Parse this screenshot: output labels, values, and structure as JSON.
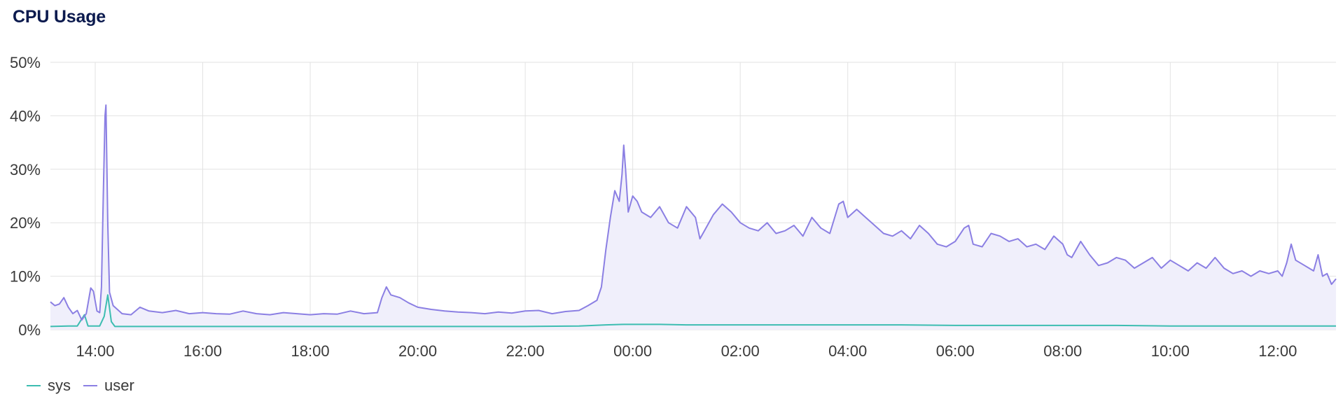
{
  "title": "CPU Usage",
  "colors": {
    "sys": "#3dbdb1",
    "user": "#8b7fe3",
    "user_fill": "#f0effb",
    "grid": "#e2e2e2"
  },
  "chart_data": {
    "type": "area",
    "title": "CPU Usage",
    "xlabel": "",
    "ylabel": "",
    "x_unit": "hours (time of day, wrapping past midnight)",
    "xlim": [
      "13:10",
      "13:05"
    ],
    "ylim": [
      0,
      50
    ],
    "y_ticks": [
      "0%",
      "10%",
      "20%",
      "30%",
      "40%",
      "50%"
    ],
    "x_ticks": [
      "14:00",
      "16:00",
      "18:00",
      "20:00",
      "22:00",
      "00:00",
      "02:00",
      "04:00",
      "06:00",
      "08:00",
      "10:00",
      "12:00"
    ],
    "grid": true,
    "legend": "bottom-left",
    "series": [
      {
        "name": "sys",
        "points": [
          [
            "13:10",
            0.6
          ],
          [
            "13:30",
            0.7
          ],
          [
            "13:40",
            0.7
          ],
          [
            "13:48",
            2.8
          ],
          [
            "13:52",
            0.7
          ],
          [
            "14:00",
            0.7
          ],
          [
            "14:05",
            0.7
          ],
          [
            "14:10",
            2.5
          ],
          [
            "14:14",
            6.5
          ],
          [
            "14:18",
            1.5
          ],
          [
            "14:22",
            0.6
          ],
          [
            "15:00",
            0.6
          ],
          [
            "16:00",
            0.6
          ],
          [
            "17:00",
            0.6
          ],
          [
            "18:00",
            0.6
          ],
          [
            "19:00",
            0.6
          ],
          [
            "20:00",
            0.6
          ],
          [
            "21:00",
            0.6
          ],
          [
            "22:00",
            0.6
          ],
          [
            "23:00",
            0.7
          ],
          [
            "23:30",
            0.9
          ],
          [
            "23:50",
            1.0
          ],
          [
            "00:00",
            1.0
          ],
          [
            "00:30",
            1.0
          ],
          [
            "01:00",
            0.9
          ],
          [
            "02:00",
            0.9
          ],
          [
            "03:00",
            0.9
          ],
          [
            "04:00",
            0.9
          ],
          [
            "05:00",
            0.9
          ],
          [
            "06:00",
            0.8
          ],
          [
            "07:00",
            0.8
          ],
          [
            "08:00",
            0.8
          ],
          [
            "09:00",
            0.8
          ],
          [
            "10:00",
            0.7
          ],
          [
            "11:00",
            0.7
          ],
          [
            "12:00",
            0.7
          ],
          [
            "13:05",
            0.7
          ]
        ]
      },
      {
        "name": "user",
        "points": [
          [
            "13:10",
            5.2
          ],
          [
            "13:15",
            4.5
          ],
          [
            "13:20",
            4.8
          ],
          [
            "13:25",
            6.0
          ],
          [
            "13:30",
            4.2
          ],
          [
            "13:35",
            3.0
          ],
          [
            "13:40",
            3.6
          ],
          [
            "13:45",
            1.8
          ],
          [
            "13:50",
            3.0
          ],
          [
            "13:55",
            7.8
          ],
          [
            "13:58",
            7.2
          ],
          [
            "14:02",
            3.5
          ],
          [
            "14:05",
            3.2
          ],
          [
            "14:07",
            8.0
          ],
          [
            "14:09",
            25.0
          ],
          [
            "14:11",
            40.0
          ],
          [
            "14:12",
            42.0
          ],
          [
            "14:14",
            20.0
          ],
          [
            "14:16",
            7.0
          ],
          [
            "14:20",
            4.5
          ],
          [
            "14:30",
            3.0
          ],
          [
            "14:40",
            2.8
          ],
          [
            "14:50",
            4.2
          ],
          [
            "15:00",
            3.5
          ],
          [
            "15:15",
            3.2
          ],
          [
            "15:30",
            3.6
          ],
          [
            "15:45",
            3.0
          ],
          [
            "16:00",
            3.2
          ],
          [
            "16:15",
            3.0
          ],
          [
            "16:30",
            2.9
          ],
          [
            "16:45",
            3.5
          ],
          [
            "17:00",
            3.0
          ],
          [
            "17:15",
            2.8
          ],
          [
            "17:30",
            3.2
          ],
          [
            "17:45",
            3.0
          ],
          [
            "18:00",
            2.8
          ],
          [
            "18:15",
            3.0
          ],
          [
            "18:30",
            2.9
          ],
          [
            "18:45",
            3.5
          ],
          [
            "19:00",
            3.0
          ],
          [
            "19:15",
            3.2
          ],
          [
            "19:20",
            6.0
          ],
          [
            "19:25",
            8.0
          ],
          [
            "19:30",
            6.5
          ],
          [
            "19:40",
            6.0
          ],
          [
            "19:50",
            5.0
          ],
          [
            "20:00",
            4.2
          ],
          [
            "20:15",
            3.8
          ],
          [
            "20:30",
            3.5
          ],
          [
            "20:45",
            3.3
          ],
          [
            "21:00",
            3.2
          ],
          [
            "21:15",
            3.0
          ],
          [
            "21:30",
            3.3
          ],
          [
            "21:45",
            3.1
          ],
          [
            "22:00",
            3.5
          ],
          [
            "22:15",
            3.6
          ],
          [
            "22:30",
            3.0
          ],
          [
            "22:45",
            3.4
          ],
          [
            "23:00",
            3.6
          ],
          [
            "23:10",
            4.5
          ],
          [
            "23:20",
            5.5
          ],
          [
            "23:25",
            8.0
          ],
          [
            "23:30",
            15.0
          ],
          [
            "23:35",
            21.0
          ],
          [
            "23:40",
            26.0
          ],
          [
            "23:45",
            24.0
          ],
          [
            "23:48",
            29.0
          ],
          [
            "23:50",
            34.5
          ],
          [
            "23:52",
            30.0
          ],
          [
            "23:55",
            22.0
          ],
          [
            "00:00",
            25.0
          ],
          [
            "00:05",
            24.0
          ],
          [
            "00:10",
            22.0
          ],
          [
            "00:20",
            21.0
          ],
          [
            "00:30",
            23.0
          ],
          [
            "00:40",
            20.0
          ],
          [
            "00:50",
            19.0
          ],
          [
            "01:00",
            23.0
          ],
          [
            "01:10",
            21.0
          ],
          [
            "01:15",
            17.0
          ],
          [
            "01:20",
            18.5
          ],
          [
            "01:30",
            21.5
          ],
          [
            "01:40",
            23.5
          ],
          [
            "01:50",
            22.0
          ],
          [
            "02:00",
            20.0
          ],
          [
            "02:10",
            19.0
          ],
          [
            "02:20",
            18.5
          ],
          [
            "02:30",
            20.0
          ],
          [
            "02:40",
            18.0
          ],
          [
            "02:50",
            18.5
          ],
          [
            "03:00",
            19.5
          ],
          [
            "03:10",
            17.5
          ],
          [
            "03:20",
            21.0
          ],
          [
            "03:30",
            19.0
          ],
          [
            "03:40",
            18.0
          ],
          [
            "03:50",
            23.5
          ],
          [
            "03:55",
            24.0
          ],
          [
            "04:00",
            21.0
          ],
          [
            "04:10",
            22.5
          ],
          [
            "04:20",
            21.0
          ],
          [
            "04:30",
            19.5
          ],
          [
            "04:40",
            18.0
          ],
          [
            "04:50",
            17.5
          ],
          [
            "05:00",
            18.5
          ],
          [
            "05:10",
            17.0
          ],
          [
            "05:20",
            19.5
          ],
          [
            "05:30",
            18.0
          ],
          [
            "05:40",
            16.0
          ],
          [
            "05:50",
            15.5
          ],
          [
            "06:00",
            16.5
          ],
          [
            "06:10",
            19.0
          ],
          [
            "06:15",
            19.5
          ],
          [
            "06:20",
            16.0
          ],
          [
            "06:30",
            15.5
          ],
          [
            "06:40",
            18.0
          ],
          [
            "06:50",
            17.5
          ],
          [
            "07:00",
            16.5
          ],
          [
            "07:10",
            17.0
          ],
          [
            "07:20",
            15.5
          ],
          [
            "07:30",
            16.0
          ],
          [
            "07:40",
            15.0
          ],
          [
            "07:50",
            17.5
          ],
          [
            "08:00",
            16.0
          ],
          [
            "08:05",
            14.0
          ],
          [
            "08:10",
            13.5
          ],
          [
            "08:20",
            16.5
          ],
          [
            "08:30",
            14.0
          ],
          [
            "08:40",
            12.0
          ],
          [
            "08:50",
            12.5
          ],
          [
            "09:00",
            13.5
          ],
          [
            "09:10",
            13.0
          ],
          [
            "09:20",
            11.5
          ],
          [
            "09:30",
            12.5
          ],
          [
            "09:40",
            13.5
          ],
          [
            "09:50",
            11.5
          ],
          [
            "10:00",
            13.0
          ],
          [
            "10:10",
            12.0
          ],
          [
            "10:20",
            11.0
          ],
          [
            "10:30",
            12.5
          ],
          [
            "10:40",
            11.5
          ],
          [
            "10:50",
            13.5
          ],
          [
            "11:00",
            11.5
          ],
          [
            "11:10",
            10.5
          ],
          [
            "11:20",
            11.0
          ],
          [
            "11:30",
            10.0
          ],
          [
            "11:40",
            11.0
          ],
          [
            "11:50",
            10.5
          ],
          [
            "12:00",
            11.0
          ],
          [
            "12:05",
            10.0
          ],
          [
            "12:10",
            12.5
          ],
          [
            "12:15",
            16.0
          ],
          [
            "12:20",
            13.0
          ],
          [
            "12:30",
            12.0
          ],
          [
            "12:40",
            11.0
          ],
          [
            "12:45",
            14.0
          ],
          [
            "12:50",
            10.0
          ],
          [
            "12:55",
            10.5
          ],
          [
            "13:00",
            8.5
          ],
          [
            "13:05",
            9.5
          ]
        ]
      }
    ]
  }
}
